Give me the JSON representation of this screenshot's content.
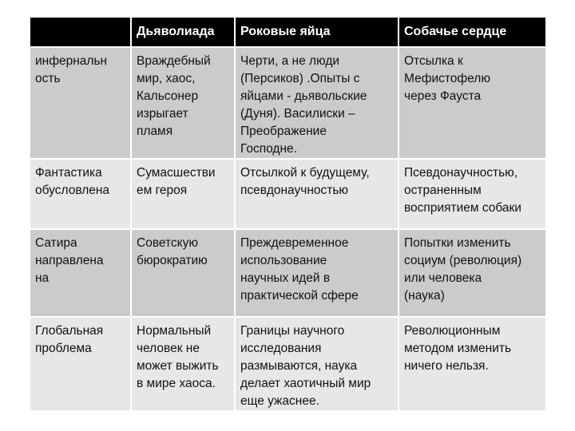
{
  "table": {
    "headers": [
      "",
      "Дьяволиада",
      "Роковые яйца",
      "Собачье сердце"
    ],
    "rows": [
      [
        "инфернальн\nость",
        "Враждебный\nмир, хаос,\nКальсонер\nизрыгает\nпламя",
        "Черти, а не люди\n(Персиков) .Опыты с\nяйцами  - дьявольские\n(Дуня). Василиски –\nПреображение\nГосподне.",
        "Отсылка к\nМефистофелю\nчерез Фауста"
      ],
      [
        "Фантастика\nобусловлена",
        "Сумасшестви\nем героя",
        "Отсылкой к будущему,\nпсевдонаучностью",
        "Псевдонаучностью,\nостраненным\nвосприятием собаки"
      ],
      [
        "Сатира\nнаправлена\nна",
        "Советскую\nбюрократию",
        "Преждевременное\nиспользование\nнаучных идей в\nпрактической сфере",
        "Попытки изменить\nсоциум (революция)\nили человека\n(наука)"
      ],
      [
        "Глобальная\nпроблема",
        "Нормальный\nчеловек не\nможет выжить\nв мире хаоса.",
        "Границы научного\nисследования\nразмываются, наука\nделает хаотичный мир\nеще ужаснее.",
        "Революционным\nметодом изменить\nничего нельзя."
      ]
    ]
  },
  "colors": {
    "header_bg": "#000000",
    "row_dark": "#cbcbcb",
    "row_light": "#e7e7e7"
  }
}
